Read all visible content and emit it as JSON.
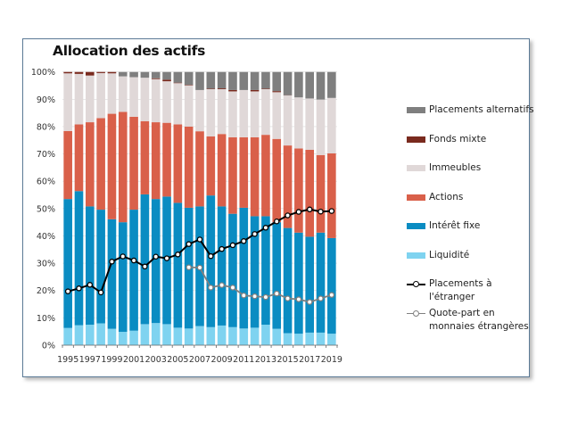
{
  "chart_data": {
    "type": "bar",
    "stacked": true,
    "title": "Allocation des actifs",
    "xlabel": "",
    "ylabel": "",
    "ylim": [
      0,
      100
    ],
    "y_ticks": [
      "0%",
      "10%",
      "20%",
      "30%",
      "40%",
      "50%",
      "60%",
      "70%",
      "80%",
      "90%",
      "100%"
    ],
    "x_tick_labels": [
      "1995",
      "1997",
      "1999",
      "2001",
      "2003",
      "2005",
      "2007",
      "2009",
      "2011",
      "2013",
      "2015",
      "2017",
      "2019"
    ],
    "grid": true,
    "legend_position": "right",
    "categories": [
      "1995",
      "1996",
      "1997",
      "1998",
      "1999",
      "2000",
      "2001",
      "2002",
      "2003",
      "2004",
      "2005",
      "2006",
      "2007",
      "2008",
      "2009",
      "2010",
      "2011",
      "2012",
      "2013",
      "2014",
      "2015",
      "2016",
      "2017",
      "2018",
      "2019"
    ],
    "series": [
      {
        "name": "Liquidité",
        "color": "#7fd3f0",
        "values": [
          6.3,
          7.3,
          7.5,
          8.0,
          6.0,
          4.9,
          5.3,
          7.7,
          8.1,
          7.7,
          6.4,
          6.1,
          7.0,
          6.6,
          7.2,
          6.6,
          6.1,
          6.4,
          7.5,
          6.0,
          4.4,
          4.2,
          4.6,
          4.6,
          4.2
        ]
      },
      {
        "name": "Intérêt fixe",
        "color": "#0a8cc2",
        "values": [
          47.2,
          49.1,
          43.3,
          41.6,
          40.1,
          40.1,
          44.3,
          47.5,
          45.4,
          46.7,
          45.7,
          44.2,
          43.8,
          48.2,
          43.6,
          41.5,
          44.2,
          40.8,
          39.7,
          39.0,
          38.5,
          37.0,
          35.1,
          36.6,
          35.0
        ]
      },
      {
        "name": "Actions",
        "color": "#d9604a",
        "values": [
          24.9,
          24.4,
          30.8,
          33.5,
          38.6,
          40.4,
          34.0,
          26.8,
          28.1,
          27.0,
          28.7,
          29.7,
          27.5,
          21.6,
          26.5,
          28.0,
          25.8,
          28.9,
          29.8,
          30.5,
          30.2,
          30.8,
          31.8,
          28.4,
          31.0
        ]
      },
      {
        "name": "Immeubles",
        "color": "#e0d8d8",
        "values": [
          21.1,
          18.5,
          17.1,
          16.5,
          14.8,
          13.0,
          14.5,
          15.9,
          15.8,
          15.2,
          15.1,
          15.1,
          15.1,
          17.3,
          16.4,
          16.8,
          17.3,
          16.8,
          16.7,
          17.1,
          18.3,
          18.7,
          18.8,
          20.3,
          20.3
        ]
      },
      {
        "name": "Fonds mixte",
        "color": "#7a2a1e",
        "values": [
          0.5,
          0.7,
          1.3,
          0.4,
          0.5,
          0,
          0,
          0,
          0.3,
          0.6,
          0.2,
          0.2,
          0,
          0.2,
          0.3,
          0.5,
          0,
          0.5,
          0.2,
          0.4,
          0.1,
          0,
          0,
          0,
          0
        ]
      },
      {
        "name": "Placements alternatifs",
        "color": "#7f7f7f",
        "values": [
          0,
          0,
          0,
          0,
          0,
          1.6,
          1.9,
          2.1,
          2.3,
          2.8,
          3.9,
          4.7,
          6.6,
          6.1,
          6.0,
          6.6,
          6.6,
          6.6,
          6.1,
          7.0,
          8.5,
          9.3,
          9.7,
          10.1,
          9.5
        ]
      }
    ],
    "lines": [
      {
        "name": "Placements à l'étranger",
        "color": "#000000",
        "values": [
          19.7,
          20.8,
          22.1,
          19.3,
          30.6,
          32.5,
          31.0,
          28.8,
          32.4,
          31.8,
          33.2,
          37.0,
          38.7,
          32.6,
          35.2,
          36.6,
          38.1,
          40.7,
          43.0,
          45.3,
          47.5,
          48.8,
          49.7,
          48.9,
          49.1
        ]
      },
      {
        "name": "Quote-part en monnaies étrangères",
        "color": "#808080",
        "values": [
          null,
          null,
          null,
          null,
          null,
          null,
          null,
          null,
          null,
          null,
          null,
          28.5,
          28.4,
          21.1,
          22.0,
          21.1,
          18.2,
          17.9,
          17.6,
          18.9,
          17.1,
          16.8,
          15.8,
          17.1,
          18.4
        ]
      }
    ]
  },
  "legend": {
    "items": [
      {
        "label": "Placements alternatifs",
        "kind": "swatch",
        "color": "#7f7f7f"
      },
      {
        "label": "Fonds mixte",
        "kind": "swatch",
        "color": "#7a2a1e"
      },
      {
        "label": "Immeubles",
        "kind": "swatch",
        "color": "#e0d8d8"
      },
      {
        "label": "Actions",
        "kind": "swatch",
        "color": "#d9604a"
      },
      {
        "label": "Intérêt fixe",
        "kind": "swatch",
        "color": "#0a8cc2"
      },
      {
        "label": "Liquidité",
        "kind": "swatch",
        "color": "#7fd3f0"
      },
      {
        "label": "Placements à\nl'étranger",
        "kind": "line",
        "color": "#000000"
      },
      {
        "label": "Quote-part en\nmonnaies étrangères",
        "kind": "line",
        "color": "#808080"
      }
    ]
  }
}
